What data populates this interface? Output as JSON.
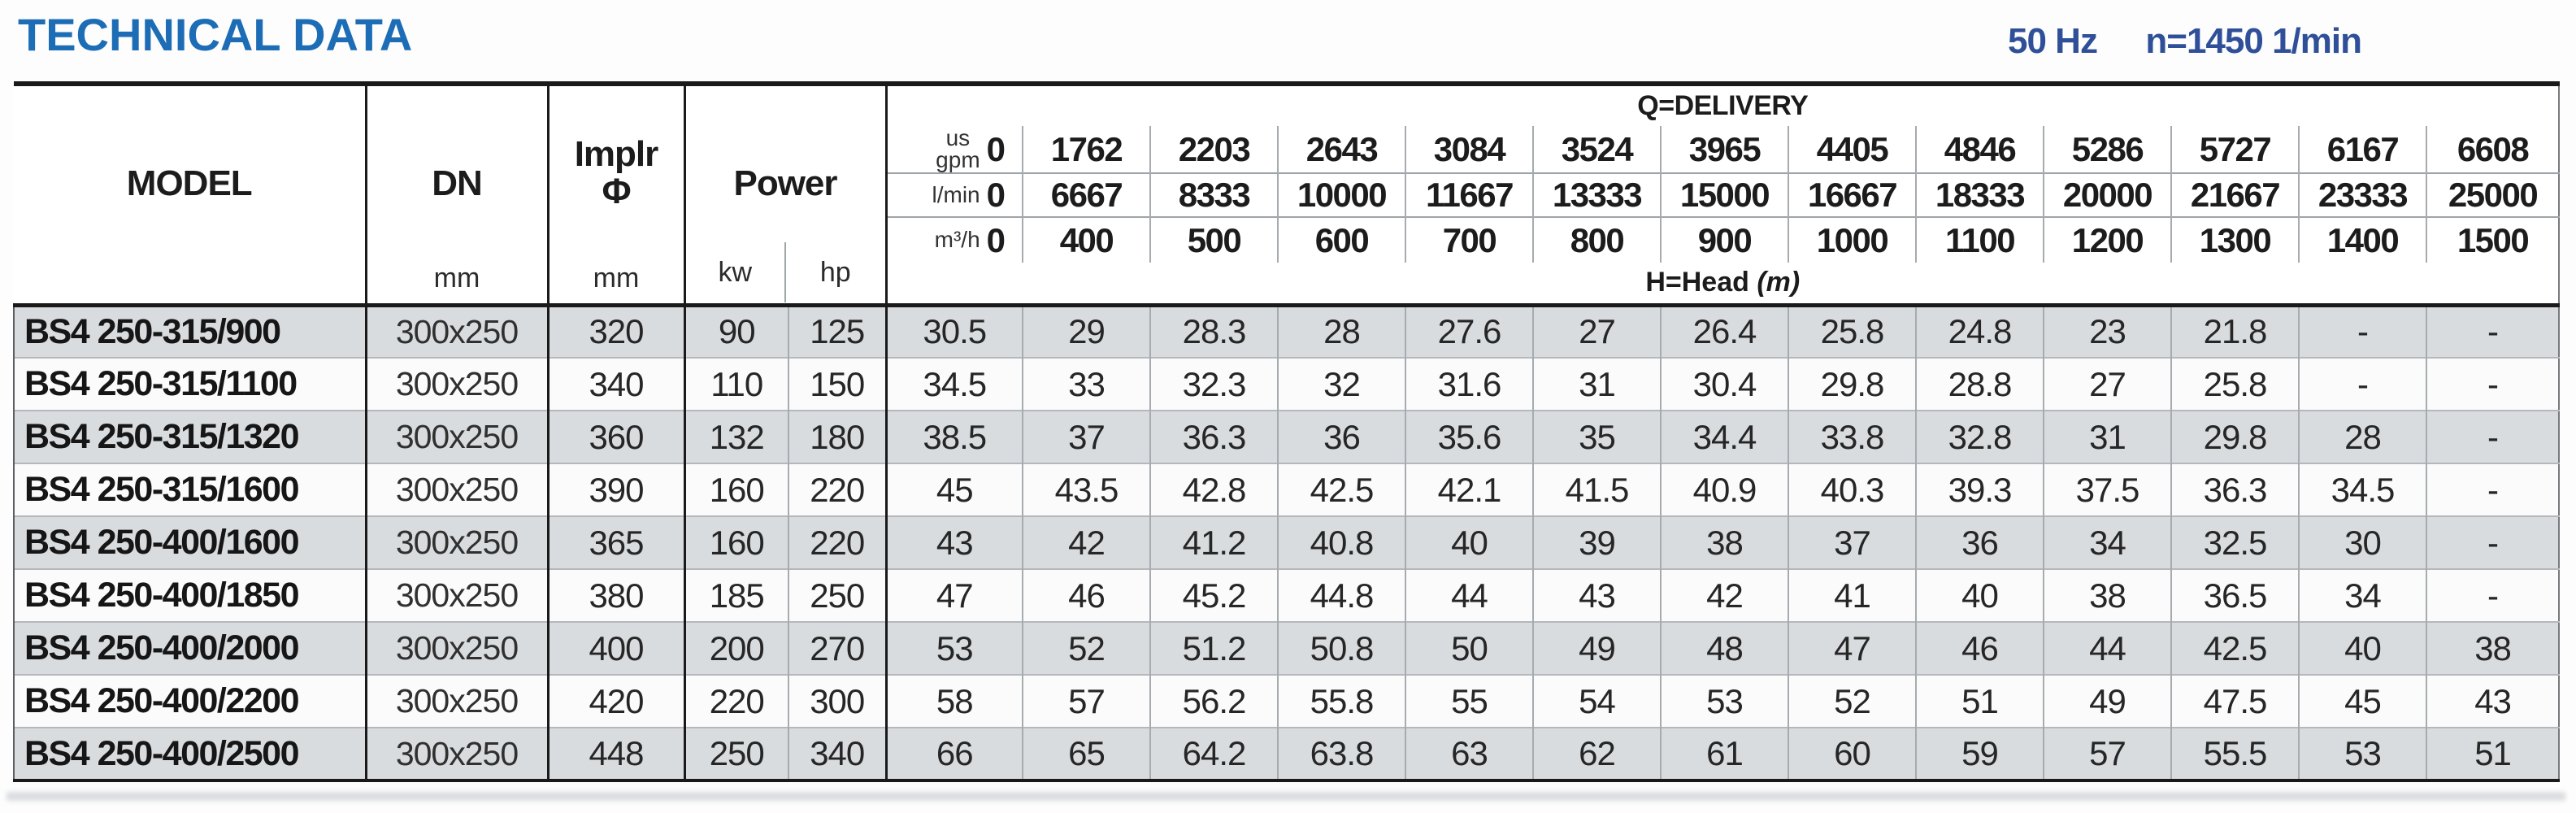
{
  "page": {
    "title": "TECHNICAL DATA",
    "frequency": "50 Hz",
    "speed": "n=1450 1/min"
  },
  "colors": {
    "title_blue": "#1d6db6",
    "subtitle_blue": "#2f5099",
    "row_stripe_gray": "#d9dcdf",
    "border_black": "#1a1a1a"
  },
  "table": {
    "left_header": {
      "model": "MODEL",
      "dn": "DN",
      "dn_unit": "mm",
      "implr_line1": "Implr",
      "implr_line2": "Φ",
      "implr_unit": "mm",
      "power": "Power",
      "kw_unit": "kw",
      "hp_unit": "hp"
    },
    "delivery": {
      "title": "Q=DELIVERY",
      "head_label": "H=Head",
      "head_unit": "(m)",
      "unit_rows": [
        {
          "label_lines": [
            "us",
            "gpm"
          ],
          "zero": "0",
          "values": [
            "1762",
            "2203",
            "2643",
            "3084",
            "3524",
            "3965",
            "4405",
            "4846",
            "5286",
            "5727",
            "6167",
            "6608"
          ]
        },
        {
          "label_lines": [
            "l/min"
          ],
          "zero": "0",
          "values": [
            "6667",
            "8333",
            "10000",
            "11667",
            "13333",
            "15000",
            "16667",
            "18333",
            "20000",
            "21667",
            "23333",
            "25000"
          ]
        },
        {
          "label_lines": [
            "m³/h"
          ],
          "zero": "0",
          "values": [
            "400",
            "500",
            "600",
            "700",
            "800",
            "900",
            "1000",
            "1100",
            "1200",
            "1300",
            "1400",
            "1500"
          ]
        }
      ]
    },
    "rows": [
      {
        "model": "BS4 250-315/900",
        "dn": "300x250",
        "implr": "320",
        "kw": "90",
        "hp": "125",
        "head": [
          "30.5",
          "29",
          "28.3",
          "28",
          "27.6",
          "27",
          "26.4",
          "25.8",
          "24.8",
          "23",
          "21.8",
          "-",
          "-"
        ]
      },
      {
        "model": "BS4 250-315/1100",
        "dn": "300x250",
        "implr": "340",
        "kw": "110",
        "hp": "150",
        "head": [
          "34.5",
          "33",
          "32.3",
          "32",
          "31.6",
          "31",
          "30.4",
          "29.8",
          "28.8",
          "27",
          "25.8",
          "-",
          "-"
        ]
      },
      {
        "model": "BS4 250-315/1320",
        "dn": "300x250",
        "implr": "360",
        "kw": "132",
        "hp": "180",
        "head": [
          "38.5",
          "37",
          "36.3",
          "36",
          "35.6",
          "35",
          "34.4",
          "33.8",
          "32.8",
          "31",
          "29.8",
          "28",
          "-"
        ]
      },
      {
        "model": "BS4 250-315/1600",
        "dn": "300x250",
        "implr": "390",
        "kw": "160",
        "hp": "220",
        "head": [
          "45",
          "43.5",
          "42.8",
          "42.5",
          "42.1",
          "41.5",
          "40.9",
          "40.3",
          "39.3",
          "37.5",
          "36.3",
          "34.5",
          "-"
        ]
      },
      {
        "model": "BS4 250-400/1600",
        "dn": "300x250",
        "implr": "365",
        "kw": "160",
        "hp": "220",
        "head": [
          "43",
          "42",
          "41.2",
          "40.8",
          "40",
          "39",
          "38",
          "37",
          "36",
          "34",
          "32.5",
          "30",
          "-"
        ]
      },
      {
        "model": "BS4 250-400/1850",
        "dn": "300x250",
        "implr": "380",
        "kw": "185",
        "hp": "250",
        "head": [
          "47",
          "46",
          "45.2",
          "44.8",
          "44",
          "43",
          "42",
          "41",
          "40",
          "38",
          "36.5",
          "34",
          "-"
        ]
      },
      {
        "model": "BS4 250-400/2000",
        "dn": "300x250",
        "implr": "400",
        "kw": "200",
        "hp": "270",
        "head": [
          "53",
          "52",
          "51.2",
          "50.8",
          "50",
          "49",
          "48",
          "47",
          "46",
          "44",
          "42.5",
          "40",
          "38"
        ]
      },
      {
        "model": "BS4 250-400/2200",
        "dn": "300x250",
        "implr": "420",
        "kw": "220",
        "hp": "300",
        "head": [
          "58",
          "57",
          "56.2",
          "55.8",
          "55",
          "54",
          "53",
          "52",
          "51",
          "49",
          "47.5",
          "45",
          "43"
        ]
      },
      {
        "model": "BS4 250-400/2500",
        "dn": "300x250",
        "implr": "448",
        "kw": "250",
        "hp": "340",
        "head": [
          "66",
          "65",
          "64.2",
          "63.8",
          "63",
          "62",
          "61",
          "60",
          "59",
          "57",
          "55.5",
          "53",
          "51"
        ]
      }
    ]
  }
}
